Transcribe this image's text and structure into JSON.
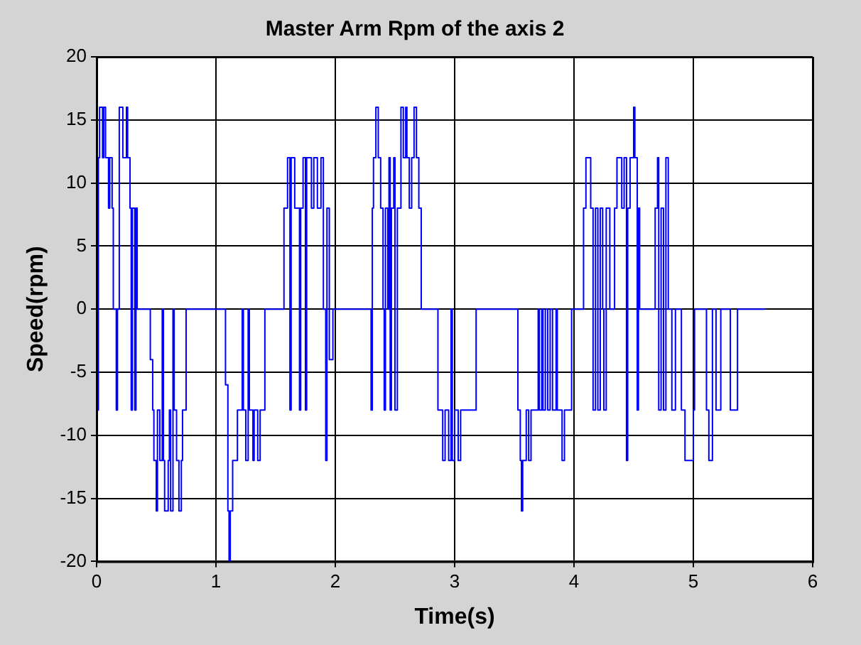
{
  "chart_data": {
    "type": "step",
    "title": "Master Arm Rpm of the axis 2",
    "xlabel": "Time(s)",
    "ylabel": "Speed(rpm)",
    "x": [
      0,
      0.01,
      0.015,
      0.025,
      0.05,
      0.06,
      0.075,
      0.1,
      0.11,
      0.13,
      0.14,
      0.165,
      0.175,
      0.19,
      0.22,
      0.25,
      0.26,
      0.28,
      0.29,
      0.3,
      0.32,
      0.33,
      0.34,
      0.45,
      0.47,
      0.48,
      0.5,
      0.51,
      0.53,
      0.55,
      0.56,
      0.57,
      0.6,
      0.61,
      0.62,
      0.64,
      0.65,
      0.67,
      0.69,
      0.71,
      0.72,
      0.75,
      1.08,
      1.1,
      1.11,
      1.12,
      1.14,
      1.18,
      1.22,
      1.23,
      1.25,
      1.27,
      1.28,
      1.31,
      1.32,
      1.35,
      1.37,
      1.41,
      1.57,
      1.6,
      1.62,
      1.63,
      1.66,
      1.7,
      1.71,
      1.73,
      1.75,
      1.76,
      1.8,
      1.82,
      1.85,
      1.88,
      1.9,
      1.92,
      1.93,
      1.95,
      1.98,
      2.3,
      2.31,
      2.32,
      2.34,
      2.36,
      2.38,
      2.4,
      2.41,
      2.42,
      2.44,
      2.45,
      2.46,
      2.47,
      2.49,
      2.5,
      2.52,
      2.55,
      2.57,
      2.59,
      2.6,
      2.62,
      2.64,
      2.66,
      2.68,
      2.7,
      2.72,
      2.86,
      2.9,
      2.92,
      2.95,
      2.97,
      2.98,
      3.0,
      3.03,
      3.05,
      3.18,
      3.53,
      3.55,
      3.56,
      3.57,
      3.6,
      3.62,
      3.64,
      3.7,
      3.71,
      3.73,
      3.74,
      3.76,
      3.78,
      3.8,
      3.82,
      3.85,
      3.86,
      3.9,
      3.92,
      3.98,
      4.08,
      4.1,
      4.14,
      4.16,
      4.18,
      4.2,
      4.22,
      4.24,
      4.25,
      4.27,
      4.3,
      4.34,
      4.36,
      4.4,
      4.42,
      4.44,
      4.45,
      4.47,
      4.5,
      4.51,
      4.53,
      4.54,
      4.55,
      4.68,
      4.7,
      4.71,
      4.73,
      4.75,
      4.77,
      4.79,
      4.82,
      4.85,
      4.9,
      4.93,
      5.0,
      5.01,
      5.11,
      5.13,
      5.16,
      5.19,
      5.23,
      5.31,
      5.37,
      5.6
    ],
    "values": [
      0,
      -8,
      12,
      16,
      12,
      16,
      12,
      8,
      12,
      8,
      0,
      -8,
      0,
      16,
      12,
      16,
      12,
      8,
      -8,
      8,
      -8,
      8,
      0,
      -4,
      -8,
      -12,
      -16,
      -8,
      -12,
      0,
      -12,
      -16,
      -12,
      -8,
      -16,
      0,
      -8,
      -12,
      -16,
      -12,
      -8,
      0,
      -6,
      -16,
      -20,
      -16,
      -12,
      -8,
      0,
      -8,
      -12,
      0,
      -8,
      -12,
      -8,
      -12,
      -8,
      0,
      8,
      12,
      -8,
      12,
      8,
      -8,
      8,
      12,
      -8,
      12,
      8,
      12,
      8,
      12,
      0,
      -12,
      8,
      -4,
      0,
      -8,
      8,
      12,
      16,
      12,
      8,
      0,
      -8,
      8,
      0,
      12,
      -8,
      8,
      12,
      -8,
      8,
      16,
      12,
      16,
      12,
      8,
      12,
      16,
      12,
      8,
      0,
      -8,
      -12,
      -8,
      -12,
      0,
      -12,
      -8,
      -12,
      -8,
      0,
      -8,
      -12,
      -16,
      -12,
      -8,
      -12,
      -8,
      0,
      -8,
      0,
      -8,
      0,
      -8,
      0,
      -8,
      0,
      -8,
      -12,
      -8,
      0,
      8,
      12,
      8,
      -8,
      8,
      -8,
      8,
      0,
      -8,
      8,
      0,
      8,
      12,
      8,
      12,
      -12,
      8,
      12,
      16,
      12,
      -8,
      8,
      0,
      8,
      12,
      -8,
      8,
      -8,
      12,
      0,
      -8,
      0,
      -8,
      -12,
      -8,
      0,
      -8,
      -12,
      0,
      -8,
      0,
      -8,
      0,
      0
    ],
    "color": "#0000ff",
    "marker": "none",
    "xlim": [
      0,
      6
    ],
    "ylim": [
      -20,
      20
    ],
    "xticks": [
      0,
      1,
      2,
      3,
      4,
      5,
      6
    ],
    "yticks": [
      -20,
      -15,
      -10,
      -5,
      0,
      5,
      10,
      15,
      20
    ],
    "grid": true,
    "legend": false
  }
}
